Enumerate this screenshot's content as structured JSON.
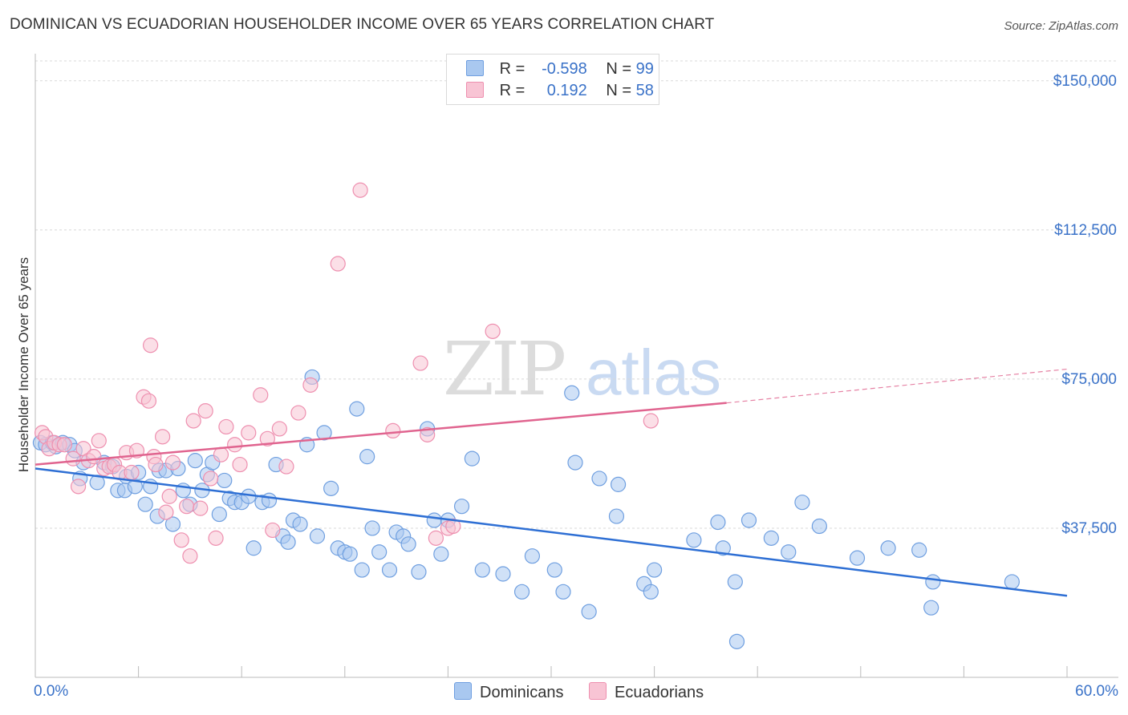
{
  "title": "DOMINICAN VS ECUADORIAN HOUSEHOLDER INCOME OVER 65 YEARS CORRELATION CHART",
  "source": "Source: ZipAtlas.com",
  "watermark": {
    "zip": "ZIP",
    "atlas": "atlas"
  },
  "legend": {
    "rows": [
      {
        "r_label": "R =",
        "r_value": "-0.598",
        "n_label": "N =",
        "n_value": "99",
        "color": "#a9c8f0",
        "border": "#6f9fe0"
      },
      {
        "r_label": "R =",
        "r_value": "0.192",
        "n_label": "N =",
        "n_value": "58",
        "color": "#f8c4d4",
        "border": "#ee8faf"
      }
    ]
  },
  "chart_data": {
    "type": "scatter",
    "title": "DOMINICAN VS ECUADORIAN HOUSEHOLDER INCOME OVER 65 YEARS CORRELATION CHART",
    "xlabel": "",
    "ylabel": "Householder Income Over 65 years",
    "xlim": [
      0,
      60
    ],
    "ylim": [
      0,
      155000
    ],
    "x_tick_labels": [
      "0.0%",
      "60.0%"
    ],
    "y_ticks": [
      37500,
      75000,
      112500,
      150000
    ],
    "y_tick_labels": [
      "$37,500",
      "$75,000",
      "$112,500",
      "$150,000"
    ],
    "grid": true,
    "legend_position": "bottom-center",
    "series": [
      {
        "name": "Dominicans",
        "color": "#6f9fe0",
        "fill": "#a9c8f0",
        "trend": {
          "x": [
            0,
            60
          ],
          "y": [
            52500,
            20500
          ],
          "style": "solid",
          "color": "#2e6fd4"
        },
        "points": [
          [
            0.3,
            59000
          ],
          [
            0.6,
            58500
          ],
          [
            1.0,
            59000
          ],
          [
            1.2,
            58000
          ],
          [
            1.6,
            59000
          ],
          [
            2.0,
            58500
          ],
          [
            2.3,
            57000
          ],
          [
            2.6,
            50000
          ],
          [
            2.8,
            54000
          ],
          [
            3.6,
            49000
          ],
          [
            4.0,
            54000
          ],
          [
            4.5,
            53000
          ],
          [
            4.8,
            47000
          ],
          [
            5.2,
            47000
          ],
          [
            5.3,
            50500
          ],
          [
            5.8,
            48000
          ],
          [
            6.0,
            51500
          ],
          [
            6.4,
            43500
          ],
          [
            6.7,
            48000
          ],
          [
            7.1,
            40500
          ],
          [
            7.2,
            52000
          ],
          [
            7.6,
            52000
          ],
          [
            8.0,
            38500
          ],
          [
            8.3,
            52500
          ],
          [
            8.6,
            47000
          ],
          [
            9.0,
            43500
          ],
          [
            9.3,
            54500
          ],
          [
            9.7,
            47000
          ],
          [
            10.0,
            51000
          ],
          [
            10.3,
            54000
          ],
          [
            10.7,
            41000
          ],
          [
            11.0,
            49500
          ],
          [
            11.3,
            45000
          ],
          [
            11.6,
            44000
          ],
          [
            12.0,
            44000
          ],
          [
            12.4,
            45500
          ],
          [
            12.7,
            32500
          ],
          [
            13.2,
            44000
          ],
          [
            13.6,
            44500
          ],
          [
            14.0,
            53500
          ],
          [
            14.4,
            35500
          ],
          [
            14.7,
            34000
          ],
          [
            15.0,
            39500
          ],
          [
            15.4,
            38500
          ],
          [
            15.8,
            58500
          ],
          [
            16.1,
            75500
          ],
          [
            16.4,
            35500
          ],
          [
            16.8,
            61500
          ],
          [
            17.2,
            47500
          ],
          [
            17.6,
            32500
          ],
          [
            18.0,
            31500
          ],
          [
            18.3,
            31000
          ],
          [
            18.7,
            67500
          ],
          [
            19.0,
            27000
          ],
          [
            19.3,
            55500
          ],
          [
            19.6,
            37500
          ],
          [
            20.0,
            31500
          ],
          [
            20.6,
            27000
          ],
          [
            21.0,
            36500
          ],
          [
            21.4,
            35500
          ],
          [
            21.7,
            33500
          ],
          [
            22.3,
            26500
          ],
          [
            22.8,
            62500
          ],
          [
            23.2,
            39500
          ],
          [
            23.6,
            31000
          ],
          [
            24.0,
            39500
          ],
          [
            24.8,
            43000
          ],
          [
            25.4,
            55000
          ],
          [
            26.0,
            27000
          ],
          [
            27.2,
            26000
          ],
          [
            28.3,
            21500
          ],
          [
            28.9,
            30500
          ],
          [
            30.2,
            27000
          ],
          [
            30.7,
            21500
          ],
          [
            31.2,
            71500
          ],
          [
            31.4,
            54000
          ],
          [
            32.2,
            16500
          ],
          [
            32.8,
            50000
          ],
          [
            33.8,
            40500
          ],
          [
            33.9,
            48500
          ],
          [
            35.4,
            23500
          ],
          [
            35.8,
            21500
          ],
          [
            36.0,
            27000
          ],
          [
            38.3,
            34500
          ],
          [
            39.7,
            39000
          ],
          [
            40.0,
            32500
          ],
          [
            40.7,
            24000
          ],
          [
            40.8,
            9000
          ],
          [
            41.5,
            39500
          ],
          [
            42.8,
            35000
          ],
          [
            43.8,
            31500
          ],
          [
            44.6,
            44000
          ],
          [
            45.6,
            38000
          ],
          [
            47.8,
            30000
          ],
          [
            49.6,
            32500
          ],
          [
            51.4,
            32000
          ],
          [
            52.1,
            17500
          ],
          [
            52.2,
            24000
          ],
          [
            56.8,
            24000
          ]
        ]
      },
      {
        "name": "Ecuadorians",
        "color": "#ee8faf",
        "fill": "#f8c4d4",
        "trend": {
          "x": [
            0,
            40.2
          ],
          "y": [
            53500,
            69000
          ],
          "style": "solid",
          "color": "#e0648f",
          "extension": {
            "x": [
              40.2,
              60
            ],
            "y": [
              69000,
              77500
            ],
            "style": "dashed"
          }
        },
        "points": [
          [
            0.4,
            61500
          ],
          [
            0.6,
            60500
          ],
          [
            0.8,
            57500
          ],
          [
            1.1,
            59000
          ],
          [
            1.4,
            58500
          ],
          [
            1.7,
            58500
          ],
          [
            2.2,
            55000
          ],
          [
            2.5,
            48000
          ],
          [
            2.8,
            57500
          ],
          [
            3.1,
            54500
          ],
          [
            3.4,
            55500
          ],
          [
            3.7,
            59500
          ],
          [
            4.0,
            52500
          ],
          [
            4.3,
            53000
          ],
          [
            4.6,
            53500
          ],
          [
            4.9,
            51500
          ],
          [
            5.3,
            56500
          ],
          [
            5.6,
            51500
          ],
          [
            5.9,
            57000
          ],
          [
            6.3,
            70500
          ],
          [
            6.6,
            69500
          ],
          [
            6.7,
            83500
          ],
          [
            6.9,
            55500
          ],
          [
            7.0,
            53500
          ],
          [
            7.4,
            60500
          ],
          [
            7.6,
            41500
          ],
          [
            7.8,
            45500
          ],
          [
            8.0,
            54000
          ],
          [
            8.5,
            34500
          ],
          [
            8.8,
            43000
          ],
          [
            9.0,
            30500
          ],
          [
            9.2,
            64500
          ],
          [
            9.6,
            42500
          ],
          [
            9.9,
            67000
          ],
          [
            10.2,
            50000
          ],
          [
            10.5,
            35000
          ],
          [
            10.8,
            56000
          ],
          [
            11.1,
            63000
          ],
          [
            11.6,
            58500
          ],
          [
            11.9,
            53500
          ],
          [
            12.4,
            61500
          ],
          [
            13.1,
            71000
          ],
          [
            13.8,
            37000
          ],
          [
            14.2,
            62500
          ],
          [
            14.6,
            53000
          ],
          [
            15.3,
            66500
          ],
          [
            16.0,
            73500
          ],
          [
            17.6,
            104000
          ],
          [
            18.9,
            122500
          ],
          [
            20.8,
            62000
          ],
          [
            22.4,
            79000
          ],
          [
            22.8,
            61000
          ],
          [
            23.3,
            35000
          ],
          [
            24.0,
            37500
          ],
          [
            24.3,
            38000
          ],
          [
            26.6,
            87000
          ],
          [
            35.8,
            64500
          ],
          [
            13.5,
            60000
          ]
        ]
      }
    ]
  },
  "bottom_legend": [
    {
      "label": "Dominicans",
      "color": "#a9c8f0",
      "border": "#6f9fe0"
    },
    {
      "label": "Ecuadorians",
      "color": "#f8c4d4",
      "border": "#ee8faf"
    }
  ]
}
